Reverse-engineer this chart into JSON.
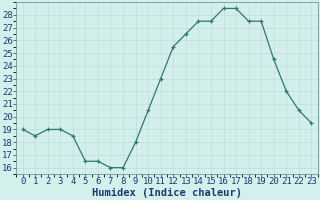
{
  "x": [
    0,
    1,
    2,
    3,
    4,
    5,
    6,
    7,
    8,
    9,
    10,
    11,
    12,
    13,
    14,
    15,
    16,
    17,
    18,
    19,
    20,
    21,
    22,
    23
  ],
  "y": [
    19,
    18.5,
    19,
    19,
    18.5,
    16.5,
    16.5,
    16,
    16,
    18,
    20.5,
    23,
    25.5,
    26.5,
    27.5,
    27.5,
    28.5,
    28.5,
    27.5,
    27.5,
    24.5,
    22,
    20.5,
    19.5
  ],
  "xlabel": "Humidex (Indice chaleur)",
  "xlim": [
    -0.5,
    23.5
  ],
  "ylim": [
    15.5,
    29.0
  ],
  "yticks": [
    16,
    17,
    18,
    19,
    20,
    21,
    22,
    23,
    24,
    25,
    26,
    27,
    28
  ],
  "xticks": [
    0,
    1,
    2,
    3,
    4,
    5,
    6,
    7,
    8,
    9,
    10,
    11,
    12,
    13,
    14,
    15,
    16,
    17,
    18,
    19,
    20,
    21,
    22,
    23
  ],
  "line_color": "#2d7a6e",
  "bg_color": "#d4f0ec",
  "grid_major_color": "#c0ddd8",
  "grid_minor_color": "#d0e8e4",
  "tick_label_color": "#1a3a6e",
  "xlabel_color": "#1a3a6e",
  "xlabel_fontsize": 7.5,
  "tick_fontsize": 6.5,
  "spine_color": "#5a8a84"
}
